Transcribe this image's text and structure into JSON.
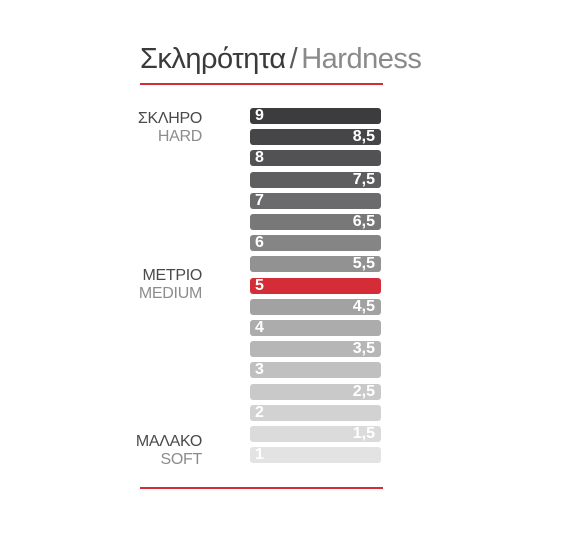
{
  "title": {
    "greek": "Σκληρότητα",
    "separator": "/",
    "english": "Hardness"
  },
  "labels": {
    "hard": {
      "greek": "ΣΚΛΗΡΟ",
      "english": "HARD"
    },
    "medium": {
      "greek": "ΜΕΤΡΙΟ",
      "english": "MEDIUM"
    },
    "soft": {
      "greek": "ΜΑΛΑΚΟ",
      "english": "SOFT"
    }
  },
  "colors": {
    "accent": "#d42d37",
    "highlight": "#d42d37"
  },
  "scale": {
    "highlighted": "5",
    "levels": [
      {
        "label": "9",
        "color": "#3c3c3e"
      },
      {
        "label": "8,5",
        "color": "#464648"
      },
      {
        "label": "8",
        "color": "#525254"
      },
      {
        "label": "7,5",
        "color": "#5e5e60"
      },
      {
        "label": "7",
        "color": "#6b6b6d"
      },
      {
        "label": "6,5",
        "color": "#787879"
      },
      {
        "label": "6",
        "color": "#858586"
      },
      {
        "label": "5,5",
        "color": "#929293"
      },
      {
        "label": "5",
        "color": "#d42d37"
      },
      {
        "label": "4,5",
        "color": "#a2a2a3"
      },
      {
        "label": "4",
        "color": "#acacad"
      },
      {
        "label": "3,5",
        "color": "#b6b6b7"
      },
      {
        "label": "3",
        "color": "#c0c0c1"
      },
      {
        "label": "2,5",
        "color": "#c9c9ca"
      },
      {
        "label": "2",
        "color": "#d2d2d3"
      },
      {
        "label": "1,5",
        "color": "#dbdbdc"
      },
      {
        "label": "1",
        "color": "#e3e3e4"
      }
    ]
  }
}
